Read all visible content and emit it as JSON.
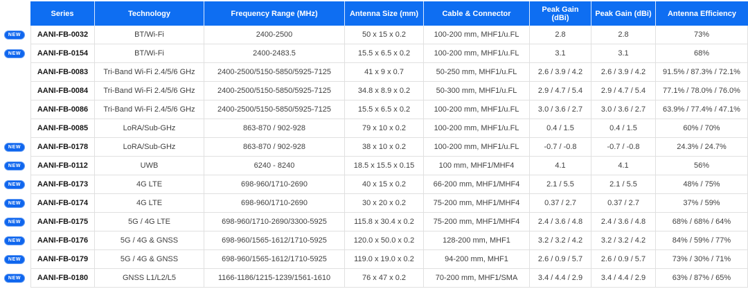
{
  "table": {
    "new_badge_label": "NEW",
    "columns": [
      "Series",
      "Technology",
      "Frequency Range (MHz)",
      "Antenna Size (mm)",
      "Cable & Connector",
      "Peak Gain (dBi)",
      "Peak Gain (dBi)",
      "Antenna Efficiency"
    ],
    "colors": {
      "header_bg": "#0e6ef2",
      "header_text": "#ffffff",
      "badge_bg": "#0f66ee",
      "row_border": "#e0e0e0",
      "body_text": "#3f3f3f",
      "series_text": "#161616"
    },
    "rows": [
      {
        "is_new": true,
        "cells": [
          "AANI-FB-0032",
          "BT/Wi-Fi",
          "2400-2500",
          "50 x 15 x 0.2",
          "100-200 mm, MHF1/u.FL",
          "2.8",
          "2.8",
          "73%"
        ]
      },
      {
        "is_new": true,
        "cells": [
          "AANI-FB-0154",
          "BT/Wi-Fi",
          "2400-2483.5",
          "15.5 x 6.5 x 0.2",
          "100-200 mm, MHF1/u.FL",
          "3.1",
          "3.1",
          "68%"
        ]
      },
      {
        "is_new": false,
        "cells": [
          "AANI-FB-0083",
          "Tri-Band Wi-Fi 2.4/5/6 GHz",
          "2400-2500/5150-5850/5925-7125",
          "41 x 9 x 0.7",
          "50-250 mm, MHF1/u.FL",
          "2.6 / 3.9 / 4.2",
          "2.6 / 3.9 / 4.2",
          "91.5% / 87.3% / 72.1%"
        ]
      },
      {
        "is_new": false,
        "cells": [
          "AANI-FB-0084",
          "Tri-Band Wi-Fi 2.4/5/6 GHz",
          "2400-2500/5150-5850/5925-7125",
          "34.8 x 8.9 x 0.2",
          "50-300 mm, MHF1/u.FL",
          "2.9 / 4.7 / 5.4",
          "2.9 / 4.7 / 5.4",
          "77.1% / 78.0% / 76.0%"
        ]
      },
      {
        "is_new": false,
        "cells": [
          "AANI-FB-0086",
          "Tri-Band Wi-Fi 2.4/5/6 GHz",
          "2400-2500/5150-5850/5925-7125",
          "15.5 x 6.5 x 0.2",
          "100-200 mm, MHF1/u.FL",
          "3.0 / 3.6 / 2.7",
          "3.0 / 3.6 / 2.7",
          "63.9% / 77.4% / 47.1%"
        ]
      },
      {
        "is_new": false,
        "cells": [
          "AANI-FB-0085",
          "LoRA/Sub-GHz",
          "863-870 / 902-928",
          "79 x 10 x 0.2",
          "100-200 mm, MHF1/u.FL",
          "0.4 / 1.5",
          "0.4 / 1.5",
          "60% / 70%"
        ]
      },
      {
        "is_new": true,
        "cells": [
          "AANI-FB-0178",
          "LoRA/Sub-GHz",
          "863-870 / 902-928",
          "38 x 10 x 0.2",
          "100-200 mm, MHF1/u.FL",
          "-0.7 / -0.8",
          "-0.7 / -0.8",
          "24.3% / 24.7%"
        ]
      },
      {
        "is_new": true,
        "cells": [
          "AANI-FB-0112",
          "UWB",
          "6240 - 8240",
          "18.5 x 15.5 x 0.15",
          "100 mm, MHF1/MHF4",
          "4.1",
          "4.1",
          "56%"
        ]
      },
      {
        "is_new": true,
        "cells": [
          "AANI-FB-0173",
          "4G LTE",
          "698-960/1710-2690",
          "40 x 15 x 0.2",
          "66-200 mm, MHF1/MHF4",
          "2.1 / 5.5",
          "2.1 / 5.5",
          "48% / 75%"
        ]
      },
      {
        "is_new": true,
        "cells": [
          "AANI-FB-0174",
          "4G LTE",
          "698-960/1710-2690",
          "30 x 20 x 0.2",
          "75-200 mm, MHF1/MHF4",
          "0.37 / 2.7",
          "0.37 / 2.7",
          "37% / 59%"
        ]
      },
      {
        "is_new": true,
        "cells": [
          "AANI-FB-0175",
          "5G / 4G LTE",
          "698-960/1710-2690/3300-5925",
          "115.8 x 30.4 x 0.2",
          "75-200 mm, MHF1/MHF4",
          "2.4 / 3.6 / 4.8",
          "2.4 / 3.6 / 4.8",
          "68% / 68% / 64%"
        ]
      },
      {
        "is_new": true,
        "cells": [
          "AANI-FB-0176",
          "5G / 4G & GNSS",
          "698-960/1565-1612/1710-5925",
          "120.0 x 50.0 x 0.2",
          "128-200 mm, MHF1",
          "3.2 / 3.2 / 4.2",
          "3.2 / 3.2 / 4.2",
          "84% / 59% / 77%"
        ]
      },
      {
        "is_new": true,
        "cells": [
          "AANI-FB-0179",
          "5G / 4G & GNSS",
          "698-960/1565-1612/1710-5925",
          "119.0 x 19.0 x 0.2",
          "94-200 mm, MHF1",
          "2.6 / 0.9 / 5.7",
          "2.6 / 0.9 / 5.7",
          "73% / 30% / 71%"
        ]
      },
      {
        "is_new": true,
        "cells": [
          "AANI-FB-0180",
          "GNSS L1/L2/L5",
          "1166-1186/1215-1239/1561-1610",
          "76 x 47 x 0.2",
          "70-200 mm, MHF1/SMA",
          "3.4 / 4.4 / 2.9",
          "3.4 / 4.4 / 2.9",
          "63% / 87% / 65%"
        ]
      }
    ]
  }
}
